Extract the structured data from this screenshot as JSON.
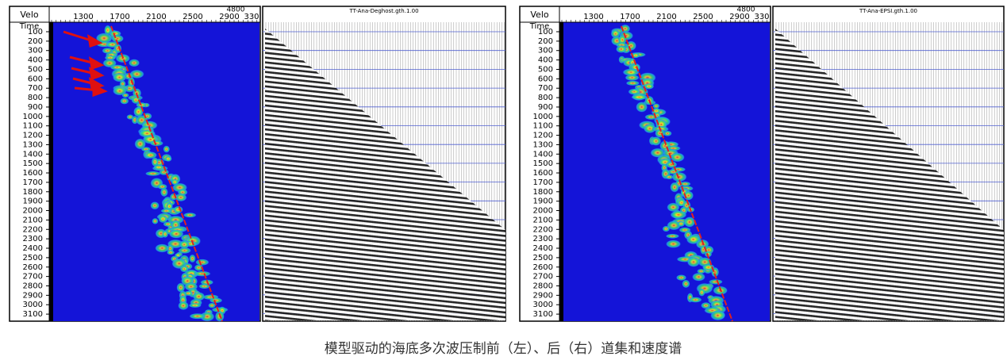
{
  "panels": [
    {
      "velocity_label": "Velo",
      "time_label": "Time",
      "velocity_max": "4800",
      "velocity_ticks": [
        "1300",
        "1700",
        "2100",
        "2500",
        "2900",
        "330"
      ],
      "time_ticks": [
        "100",
        "200",
        "300",
        "400",
        "500",
        "600",
        "700",
        "800",
        "900",
        "1000",
        "1100",
        "1200",
        "1300",
        "1400",
        "1500",
        "1600",
        "1700",
        "1800",
        "1900",
        "2000",
        "2100",
        "2200",
        "2300",
        "2400",
        "2500",
        "2600",
        "2700",
        "2800",
        "2900",
        "3000",
        "3100"
      ],
      "gather_title": "TT-Ana-Deghost.gth.1.00"
    },
    {
      "velocity_label": "Velo",
      "time_label": "Time",
      "velocity_max": "4800",
      "velocity_ticks": [
        "1300",
        "1700",
        "2100",
        "2500",
        "2900",
        "330"
      ],
      "time_ticks": [
        "100",
        "200",
        "300",
        "400",
        "500",
        "600",
        "700",
        "800",
        "900",
        "1000",
        "1100",
        "1200",
        "1300",
        "1400",
        "1500",
        "1600",
        "1700",
        "1800",
        "1900",
        "2000",
        "2100",
        "2200",
        "2300",
        "2400",
        "2500",
        "2600",
        "2700",
        "2800",
        "2900",
        "3000",
        "3100"
      ],
      "gather_title": "TT-Ana-EPSI.gth.1.00"
    }
  ],
  "caption": "模型驱动的海底多次波压制前（左）、后（右）道集和速度谱"
}
